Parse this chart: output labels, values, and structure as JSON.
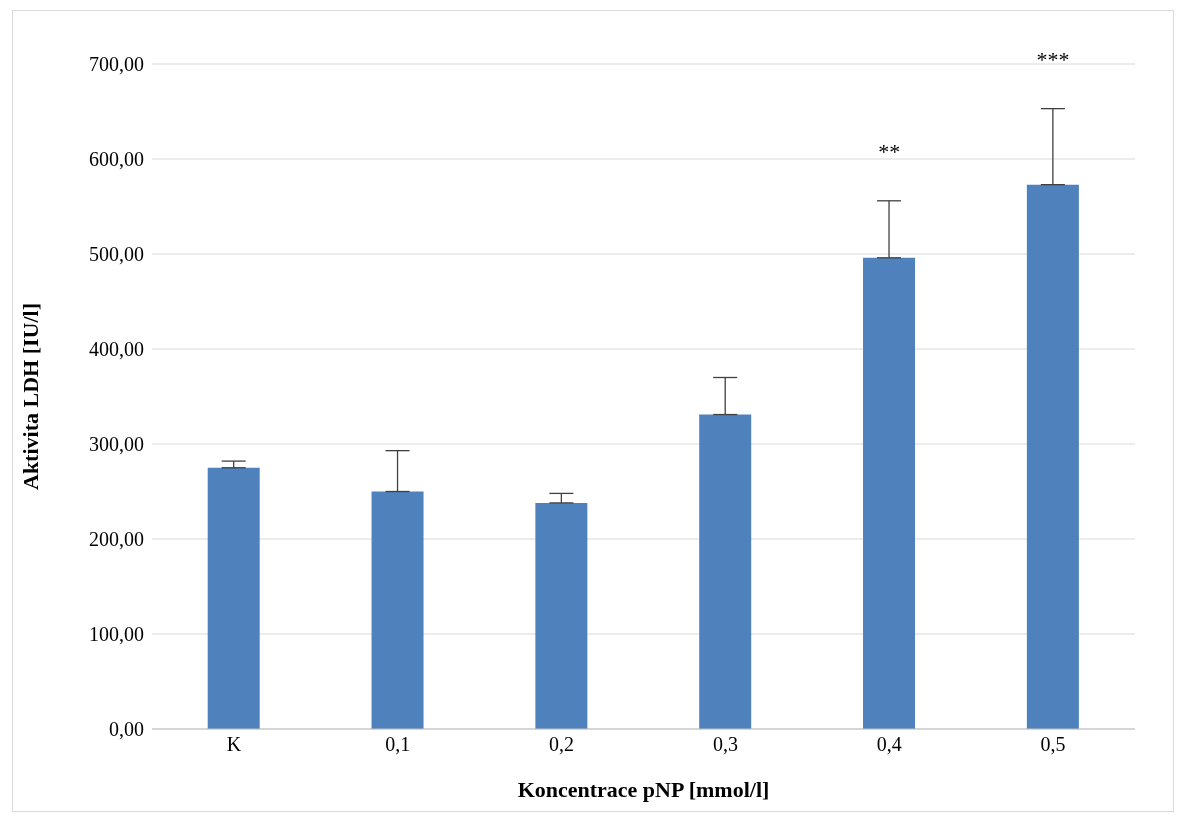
{
  "chart_data": {
    "type": "bar",
    "xlabel": "Koncentrace pNP [mmol/l]",
    "ylabel": "Aktivita LDH [IU/l]",
    "categories": [
      "K",
      "0,1",
      "0,2",
      "0,3",
      "0,4",
      "0,5"
    ],
    "values": [
      275,
      250,
      238,
      331,
      496,
      573
    ],
    "errors": [
      [
        275,
        282
      ],
      [
        250,
        293
      ],
      [
        238,
        248
      ],
      [
        331,
        370
      ],
      [
        496,
        556
      ],
      [
        573,
        653
      ]
    ],
    "color": "#4f81bd",
    "ylim": [
      0,
      700
    ],
    "yticks": [
      {
        "value": 0,
        "label": "0,00"
      },
      {
        "value": 100,
        "label": "100,00"
      },
      {
        "value": 200,
        "label": "200,00"
      },
      {
        "value": 300,
        "label": "300,00"
      },
      {
        "value": 400,
        "label": "400,00"
      },
      {
        "value": 500,
        "label": "500,00"
      },
      {
        "value": 600,
        "label": "600,00"
      },
      {
        "value": 700,
        "label": "700,00"
      }
    ],
    "grid": "y",
    "annotations": [
      "**",
      "***"
    ]
  }
}
